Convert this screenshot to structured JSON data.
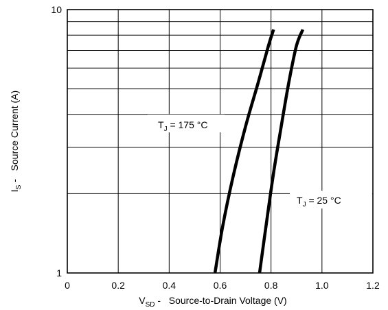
{
  "chart_data": {
    "type": "line",
    "title": "",
    "xlabel": {
      "main": "V",
      "sub": "SD",
      "rest": " -   Source-to-Drain Voltage (V)"
    },
    "ylabel": {
      "main": "I",
      "sub": "S",
      "rest": " -   Source Current (A)"
    },
    "xlim": [
      0,
      1.2
    ],
    "ylim": [
      1,
      10
    ],
    "yscale": "log",
    "grid": true,
    "x_ticks": [
      "0",
      "0.2",
      "0.4",
      "0.6",
      "0.8",
      "1.0",
      "1.2"
    ],
    "y_ticks": [
      "1",
      "10"
    ],
    "series": [
      {
        "annotation": {
          "main": "T",
          "sub": "J",
          "rest": " = 175 °C"
        },
        "x": [
          0.58,
          0.61,
          0.65,
          0.7,
          0.75,
          0.79,
          0.81
        ],
        "y": [
          1.0,
          1.5,
          2.3,
          3.6,
          5.3,
          7.3,
          8.4
        ]
      },
      {
        "annotation": {
          "main": "T",
          "sub": "J",
          "rest": " = 25 °C"
        },
        "x": [
          0.755,
          0.78,
          0.81,
          0.84,
          0.87,
          0.9,
          0.925
        ],
        "y": [
          1.0,
          1.5,
          2.4,
          3.6,
          5.3,
          7.3,
          8.4
        ]
      }
    ]
  }
}
